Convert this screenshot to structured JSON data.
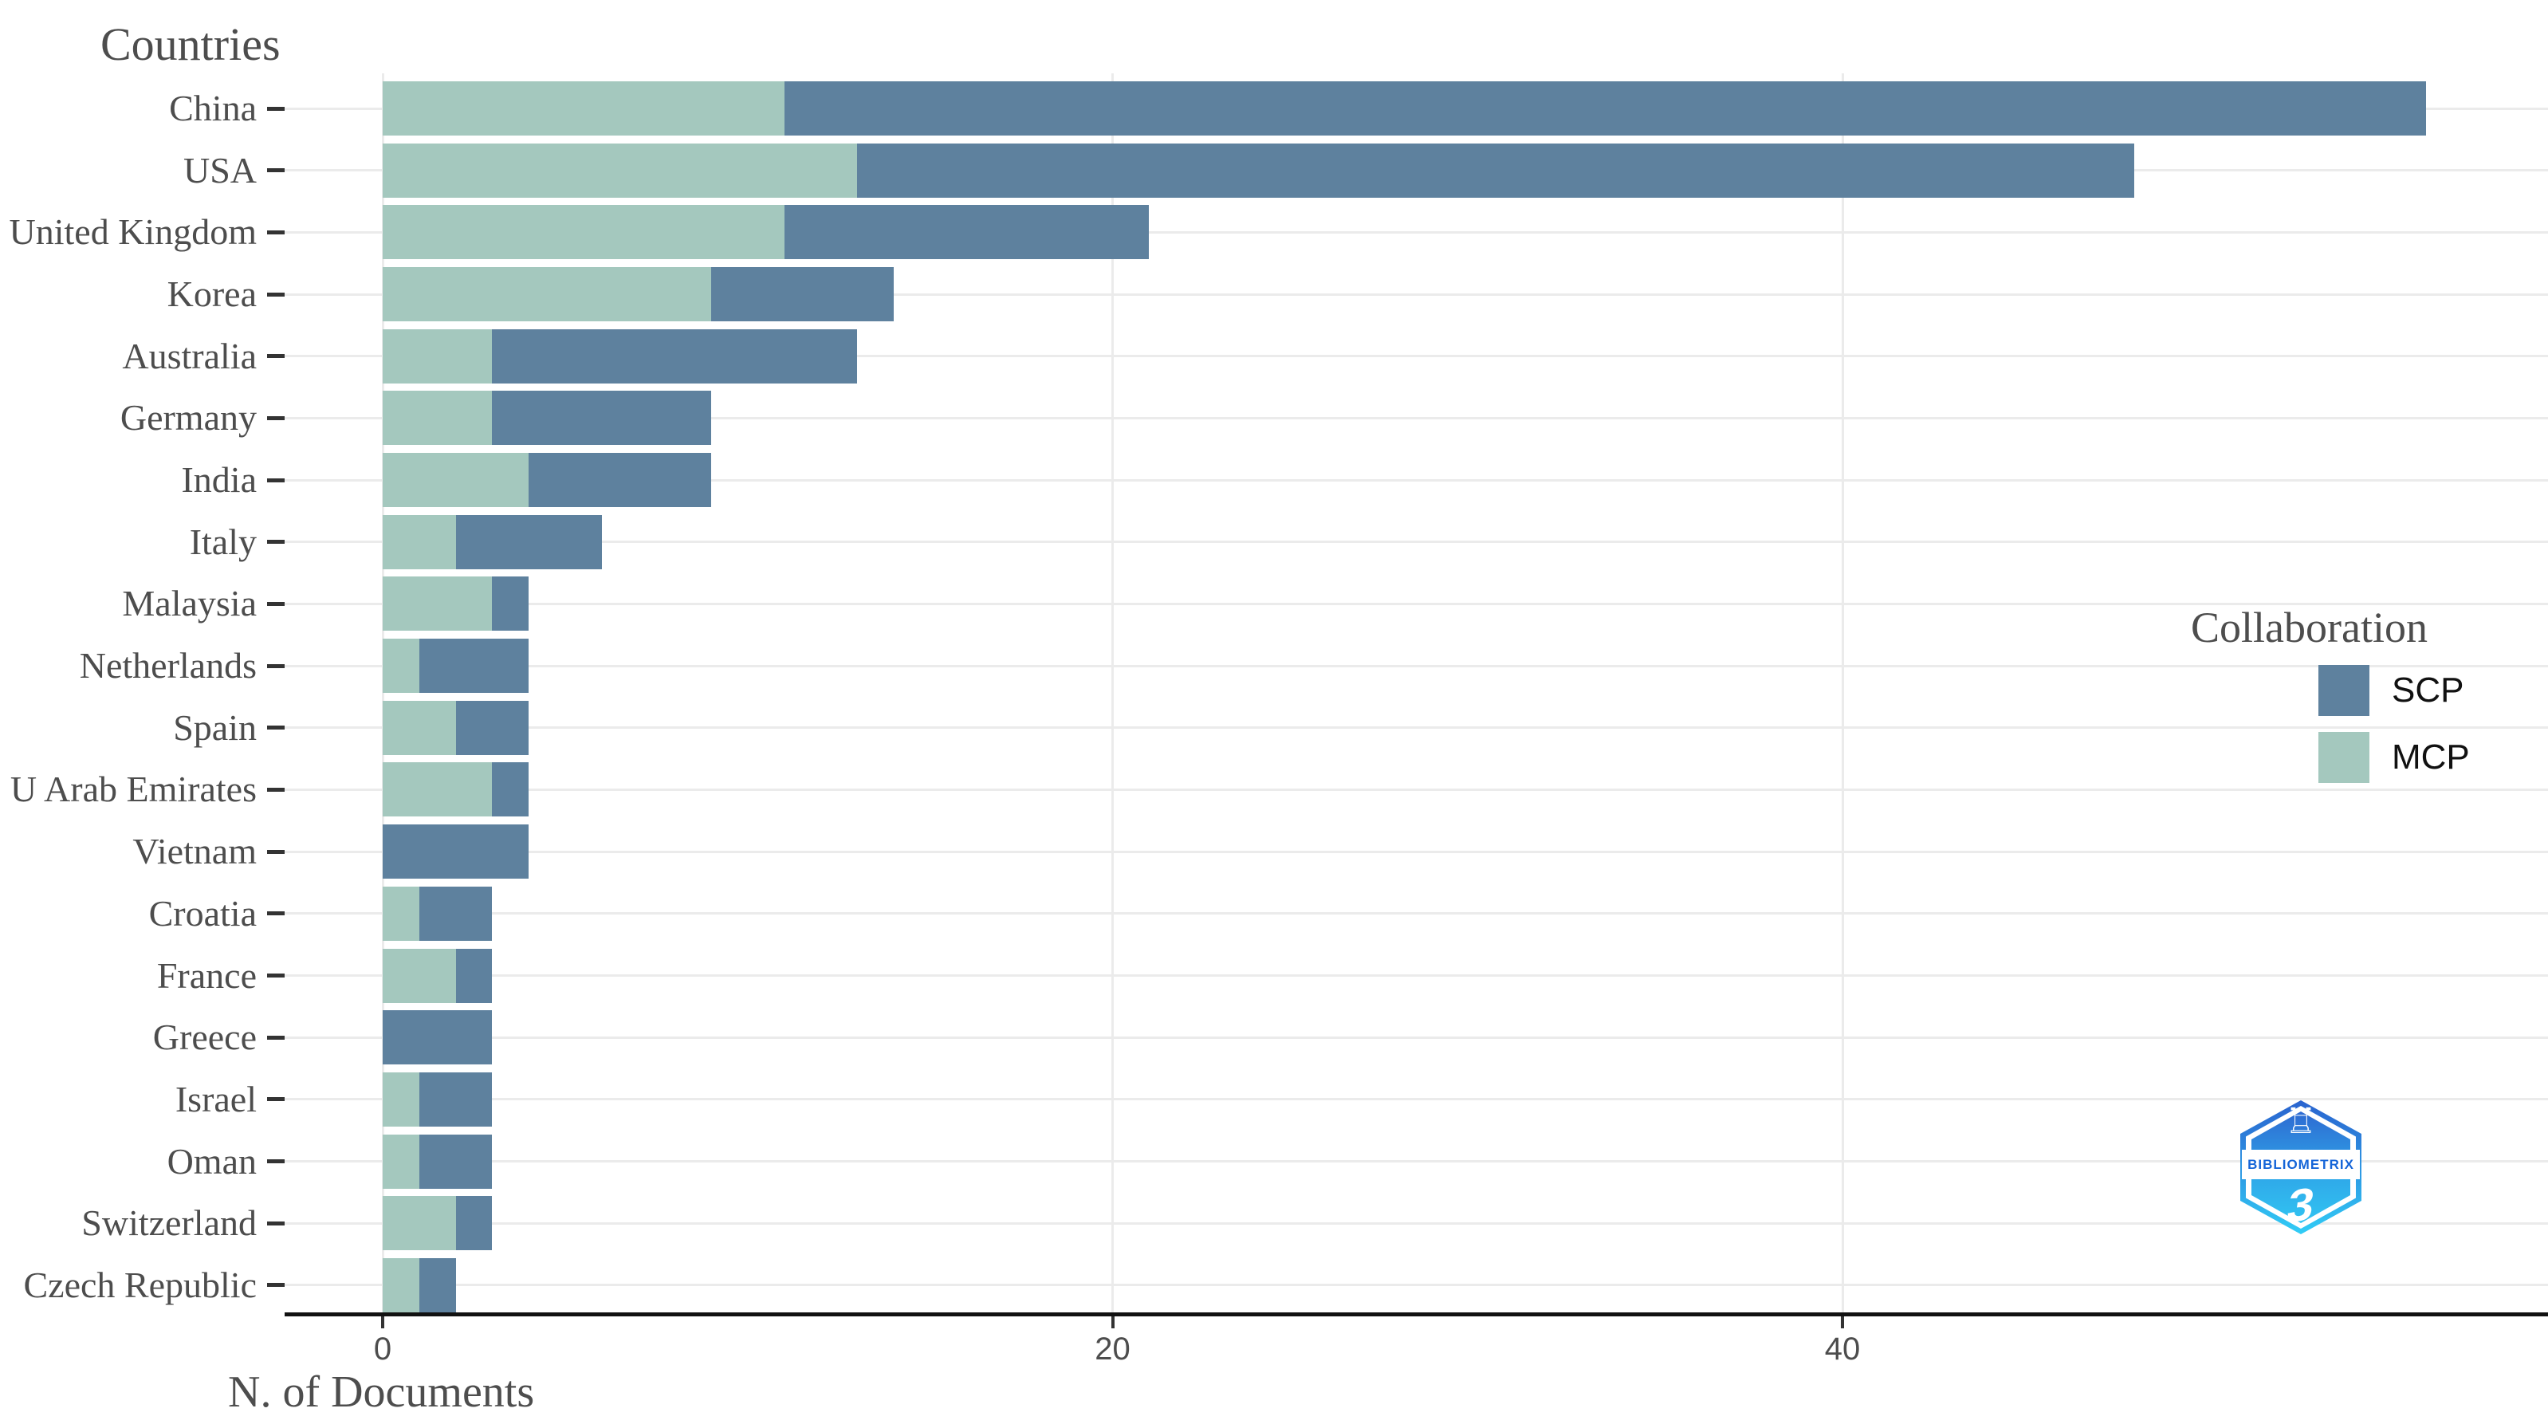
{
  "title": "Countries",
  "xlabel": "N. of Documents",
  "axis": {
    "tick_labels": [
      "0",
      "20",
      "40"
    ]
  },
  "legend": {
    "title": "Collaboration",
    "items": [
      {
        "label": "SCP",
        "color": "#5e819e"
      },
      {
        "label": "MCP",
        "color": "#a4c8be"
      }
    ]
  },
  "logo": {
    "wordmark": "BIBLIOMETRIX",
    "version": "3",
    "rook_glyph": "♖"
  },
  "colors": {
    "scp": "#5e819e",
    "mcp": "#a4c8be",
    "gridline": "#ebebeb",
    "axis_text": "#4d4d4d",
    "axis_line": "#111111"
  },
  "chart_data": {
    "type": "bar",
    "orientation": "horizontal",
    "stacked": true,
    "stack_order": [
      "MCP",
      "SCP"
    ],
    "title": "Countries",
    "xlabel": "N. of Documents",
    "legend_title": "Collaboration",
    "legend_position": "right-inside",
    "grid": true,
    "x_ticks": [
      0,
      20,
      40
    ],
    "xlim": [
      0,
      59
    ],
    "categories": [
      "China",
      "USA",
      "United Kingdom",
      "Korea",
      "Australia",
      "Germany",
      "India",
      "Italy",
      "Malaysia",
      "Netherlands",
      "Spain",
      "U Arab Emirates",
      "Vietnam",
      "Croatia",
      "France",
      "Greece",
      "Israel",
      "Oman",
      "Switzerland",
      "Czech Republic"
    ],
    "series": [
      {
        "name": "MCP",
        "color": "#a4c8be",
        "values": [
          11,
          13,
          11,
          9,
          3,
          3,
          4,
          2,
          3,
          1,
          2,
          3,
          0,
          1,
          2,
          0,
          1,
          1,
          2,
          1
        ]
      },
      {
        "name": "SCP",
        "color": "#5e819e",
        "values": [
          45,
          35,
          10,
          5,
          10,
          6,
          5,
          4,
          1,
          3,
          2,
          1,
          4,
          2,
          1,
          3,
          2,
          2,
          1,
          1
        ]
      }
    ],
    "totals": [
      56,
      48,
      21,
      14,
      13,
      9,
      9,
      6,
      4,
      4,
      4,
      4,
      4,
      3,
      3,
      3,
      3,
      3,
      3,
      2
    ]
  }
}
